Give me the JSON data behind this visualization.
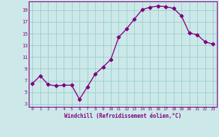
{
  "x": [
    0,
    1,
    2,
    3,
    4,
    5,
    6,
    7,
    8,
    9,
    10,
    11,
    12,
    13,
    14,
    15,
    16,
    17,
    18,
    19,
    20,
    21,
    22,
    23
  ],
  "y": [
    6.5,
    7.8,
    6.3,
    6.1,
    6.2,
    6.2,
    3.8,
    5.9,
    8.1,
    9.3,
    10.6,
    14.4,
    15.8,
    17.5,
    19.1,
    19.5,
    19.7,
    19.6,
    19.3,
    18.0,
    15.1,
    14.8,
    13.6,
    13.2
  ],
  "xlim": [
    -0.5,
    23.5
  ],
  "ylim": [
    2.5,
    20.5
  ],
  "yticks": [
    3,
    5,
    7,
    9,
    11,
    13,
    15,
    17,
    19
  ],
  "xticks": [
    0,
    1,
    2,
    3,
    4,
    5,
    6,
    7,
    8,
    9,
    10,
    11,
    12,
    13,
    14,
    15,
    16,
    17,
    18,
    19,
    20,
    21,
    22,
    23
  ],
  "xlabel": "Windchill (Refroidissement éolien,°C)",
  "line_color": "#800080",
  "marker": "D",
  "bg_color": "#cce8e8",
  "grid_color": "#99cccc",
  "tick_color": "#800080",
  "label_color": "#800080",
  "marker_size": 2.5,
  "linewidth": 1.0
}
